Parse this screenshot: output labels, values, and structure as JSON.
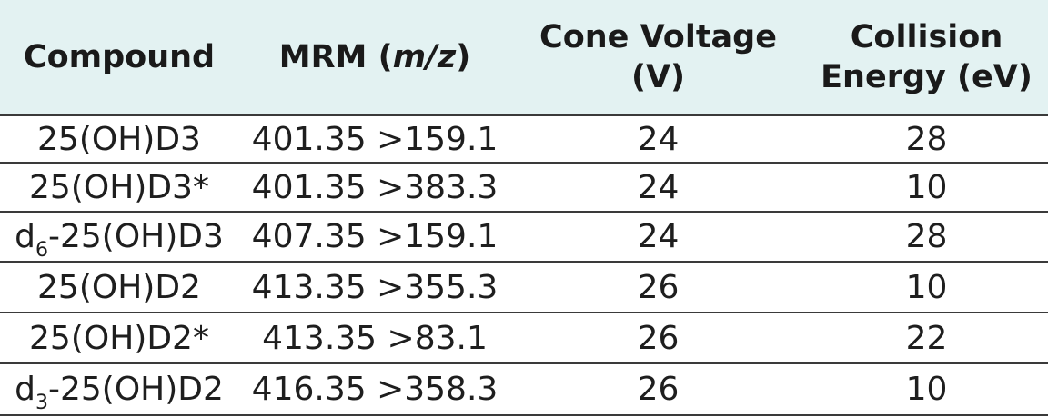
{
  "table": {
    "headers": {
      "compound": "Compound",
      "mrm_prefix": "MRM (",
      "mrm_italic": "m/z",
      "mrm_suffix": ")",
      "cone_line1": "Cone Voltage",
      "cone_line2": "(V)",
      "collision_line1": "Collision",
      "collision_line2": "Energy (eV)"
    },
    "rows": [
      {
        "compound_prefix": "",
        "compound_sub": "",
        "compound_name": "25(OH)D3",
        "mrm": "401.35 >159.1",
        "cone_voltage": "24",
        "collision_energy": "28"
      },
      {
        "compound_prefix": "",
        "compound_sub": "",
        "compound_name": "25(OH)D3*",
        "mrm": "401.35 >383.3",
        "cone_voltage": "24",
        "collision_energy": "10"
      },
      {
        "compound_prefix": "d",
        "compound_sub": "6",
        "compound_name": "-25(OH)D3",
        "mrm": "407.35 >159.1",
        "cone_voltage": "24",
        "collision_energy": "28"
      },
      {
        "compound_prefix": "",
        "compound_sub": "",
        "compound_name": "25(OH)D2",
        "mrm": "413.35 >355.3",
        "cone_voltage": "26",
        "collision_energy": "10"
      },
      {
        "compound_prefix": "",
        "compound_sub": "",
        "compound_name": "25(OH)D2*",
        "mrm": "413.35 >83.1",
        "cone_voltage": "26",
        "collision_energy": "22"
      },
      {
        "compound_prefix": "d",
        "compound_sub": "3",
        "compound_name": "-25(OH)D2",
        "mrm": "416.35 >358.3",
        "cone_voltage": "26",
        "collision_energy": "10"
      }
    ]
  },
  "colors": {
    "header_background": "#e3f2f2",
    "rule": "#3a3a3a",
    "text": "#1e1e1e"
  }
}
